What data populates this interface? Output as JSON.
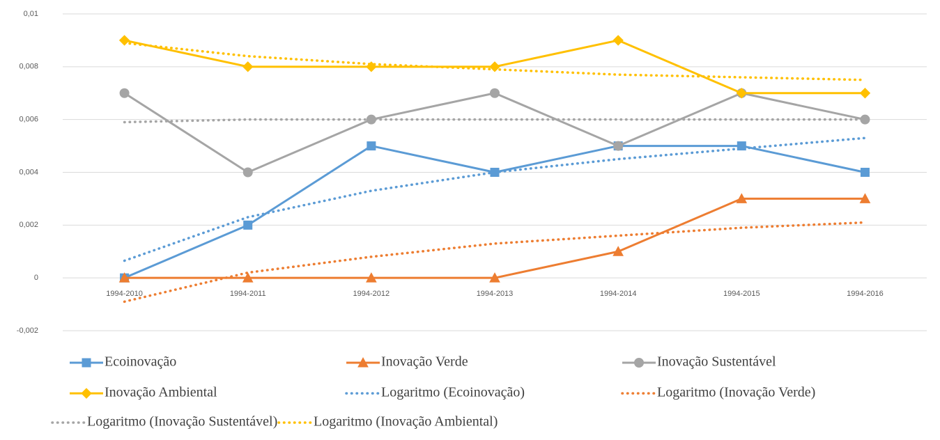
{
  "chart_data": {
    "type": "line",
    "categories": [
      "1994-2010",
      "1994-2011",
      "1994-2012",
      "1994-2013",
      "1994-2014",
      "1994-2015",
      "1994-2016"
    ],
    "ylim": [
      -0.002,
      0.01
    ],
    "yticks": [
      {
        "value": -0.002,
        "label": "-0,002"
      },
      0,
      {
        "value": 0.002,
        "label": "0,002"
      },
      {
        "value": 0.004,
        "label": "0,004"
      },
      {
        "value": 0.006,
        "label": "0,006"
      },
      {
        "value": 0.008,
        "label": "0,008"
      },
      {
        "value": 0.01,
        "label": "0,01"
      }
    ],
    "grid": true,
    "series": [
      {
        "name": "Ecoinovação",
        "color": "#5b9bd5",
        "marker": "square",
        "values": [
          0,
          0.002,
          0.005,
          0.004,
          0.005,
          0.005,
          0.004
        ]
      },
      {
        "name": "Inovação Verde",
        "color": "#ed7d31",
        "marker": "triangle",
        "values": [
          0,
          0,
          0,
          0,
          0.001,
          0.003,
          0.003
        ]
      },
      {
        "name": "Inovação Sustentável",
        "color": "#a5a5a5",
        "marker": "circle",
        "values": [
          0.007,
          0.004,
          0.006,
          0.007,
          0.005,
          0.007,
          0.006
        ]
      },
      {
        "name": "Inovação Ambiental",
        "color": "#ffc000",
        "marker": "diamond",
        "values": [
          0.009,
          0.008,
          0.008,
          0.008,
          0.009,
          0.007,
          0.007
        ]
      },
      {
        "name": "Logaritmo (Ecoinovação)",
        "color": "#5b9bd5",
        "dotted": true,
        "values": [
          0.00065,
          0.0023,
          0.0033,
          0.004,
          0.0045,
          0.0049,
          0.0053
        ]
      },
      {
        "name": "Logaritmo (Inovação Verde)",
        "color": "#ed7d31",
        "dotted": true,
        "values": [
          -0.0009,
          0.0002,
          0.0008,
          0.0013,
          0.0016,
          0.0019,
          0.0021
        ]
      },
      {
        "name": "Logaritmo (Inovação Sustentável)",
        "color": "#a5a5a5",
        "dotted": true,
        "values": [
          0.0059,
          0.006,
          0.006,
          0.006,
          0.006,
          0.006,
          0.006
        ]
      },
      {
        "name": "Logaritmo (Inovação Ambiental)",
        "color": "#ffc000",
        "dotted": true,
        "values": [
          0.0089,
          0.0084,
          0.0081,
          0.0079,
          0.0077,
          0.0076,
          0.0075
        ]
      }
    ]
  }
}
